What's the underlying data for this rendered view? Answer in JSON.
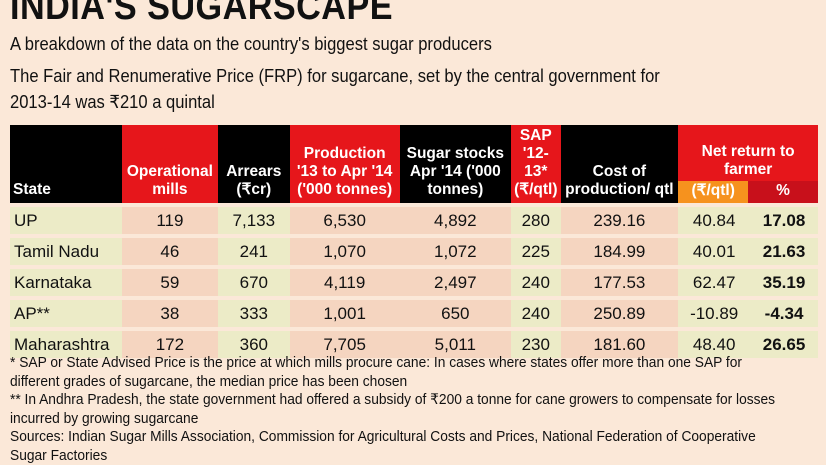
{
  "title": "INDIA'S SUGARSCAPE",
  "subtitle": "A breakdown of the data on the country's biggest sugar producers",
  "intro_line1": "The Fair and Renumerative Price (FRP) for sugarcane, set by the central government for",
  "intro_line2": "2013-14 was ₹210 a quintal",
  "headers": {
    "state": "State",
    "mills": "Operational mills",
    "arrears": "Arrears (₹cr)",
    "production": "Production '13 to Apr '14 ('000 tonnes)",
    "stocks": "Sugar stocks Apr '14 ('000 tonnes)",
    "sap": "SAP '12-13* (₹/qtl)",
    "cost": "Cost of production/ qtl",
    "net": "Net return to farmer",
    "net_qtl": "(₹/qtl)",
    "net_pct": "%"
  },
  "rows": [
    {
      "state": "UP",
      "mills": "119",
      "arrears": "7,133",
      "production": "6,530",
      "stocks": "4,892",
      "sap": "280",
      "cost": "239.16",
      "net": "40.84",
      "pct": "17.08"
    },
    {
      "state": "Tamil Nadu",
      "mills": "46",
      "arrears": "241",
      "production": "1,070",
      "stocks": "1,072",
      "sap": "225",
      "cost": "184.99",
      "net": "40.01",
      "pct": "21.63"
    },
    {
      "state": "Karnataka",
      "mills": "59",
      "arrears": "670",
      "production": "4,119",
      "stocks": "2,497",
      "sap": "240",
      "cost": "177.53",
      "net": "62.47",
      "pct": "35.19"
    },
    {
      "state": "AP**",
      "mills": "38",
      "arrears": "333",
      "production": "1,001",
      "stocks": "650",
      "sap": "240",
      "cost": "250.89",
      "net": "-10.89",
      "pct": "-4.34"
    },
    {
      "state": "Maharashtra",
      "mills": "172",
      "arrears": "360",
      "production": "7,705",
      "stocks": "5,011",
      "sap": "230",
      "cost": "181.60",
      "net": "48.40",
      "pct": "26.65"
    }
  ],
  "notes": [
    "* SAP or State Advised Price is the price at which mills procure cane: In cases where states offer more than one SAP for different grades of sugarcane, the median price has been chosen",
    "** In Andhra Pradesh, the state government had offered a subsidy of ₹200 a tonne for cane growers to compensate for losses incurred by growing sugarcane",
    "Sources: Indian Sugar Mills Association, Commission for Agricultural Costs and Prices, National Federation of Cooperative Sugar Factories"
  ]
}
